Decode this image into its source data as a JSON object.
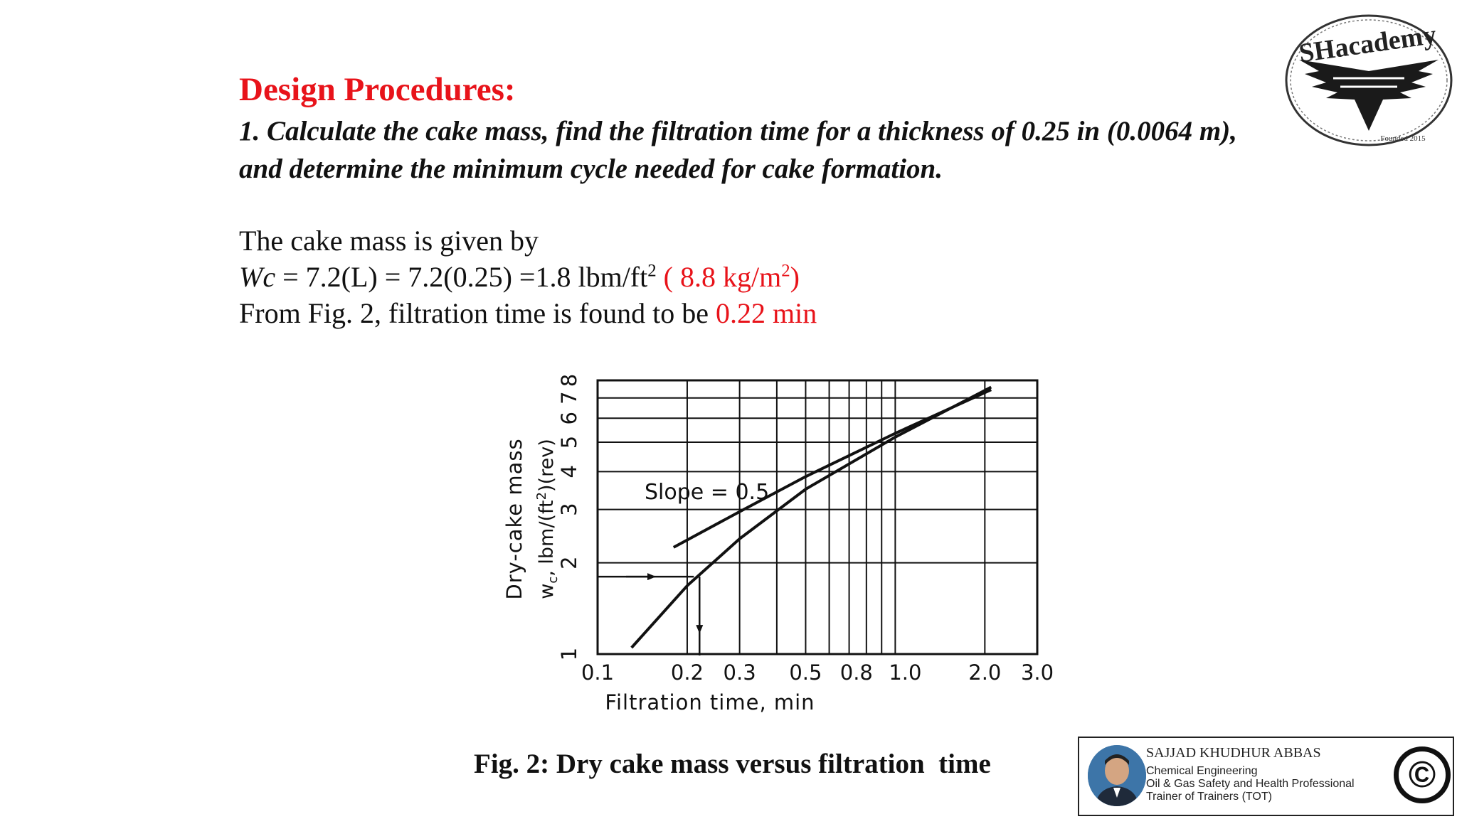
{
  "heading": "Design Procedures:",
  "step1": "1. Calculate the cake mass, find the filtration time for a thickness of 0.25 in (0.0064 m), and determine the minimum cycle needed for cake formation.",
  "line1": "The cake mass is given by",
  "line2": {
    "var": "Wc",
    "eq": " = 7.2(L) = 7.2(0.25) =1.8 lbm/ft",
    "exp1": "2",
    "red_open": " ( 8.8 kg/m",
    "exp2": "2",
    "red_close": ")"
  },
  "line3": {
    "text": "From Fig. 2, filtration time is found to be ",
    "red": "0.22 min"
  },
  "caption": "Fig. 2: Dry cake mass versus filtration  time",
  "chart_data": {
    "type": "line",
    "xscale": "log",
    "yscale": "log",
    "xlim": [
      0.1,
      3.0
    ],
    "ylim": [
      1,
      8
    ],
    "xticks": [
      {
        "v": 0.1,
        "label": "0.1"
      },
      {
        "v": 0.2,
        "label": "0.2"
      },
      {
        "v": 0.3,
        "label": "0.3"
      },
      {
        "v": 0.5,
        "label": "0.5"
      },
      {
        "v": 0.8,
        "label": "0.8"
      },
      {
        "v": 1.0,
        "label": "1.0"
      },
      {
        "v": 2.0,
        "label": "2.0"
      },
      {
        "v": 3.0,
        "label": "3.0"
      }
    ],
    "yticks": [
      "1",
      "2",
      "3",
      "4",
      "5",
      "6",
      "7",
      "8"
    ],
    "xlabel": "Filtration time, min",
    "ylabel_line1": "Dry-cake mass",
    "ylabel_line2": "w",
    "ylabel_sub": "c",
    "ylabel_rest": ", lbm/(ft",
    "ylabel_exp": "2",
    "ylabel_end": ")(rev)",
    "annotation": "Slope = 0.5",
    "series": [
      {
        "x": [
          0.13,
          0.2,
          0.3,
          0.5,
          1.0,
          2.1
        ],
        "y": [
          1.05,
          1.68,
          2.4,
          3.5,
          5.2,
          7.6
        ]
      },
      {
        "x": [
          0.18,
          0.3,
          0.5,
          1.0,
          2.1
        ],
        "y": [
          2.25,
          2.95,
          3.85,
          5.35,
          7.45
        ]
      }
    ],
    "readout": {
      "x": 0.22,
      "y": 1.8
    }
  },
  "logo": {
    "text": "SHacademy",
    "founded": "Founded 2015"
  },
  "author": {
    "name": "SAJJAD KHUDHUR ABBAS",
    "lines": [
      "Chemical Engineering",
      "Oil & Gas Safety and Health Professional",
      "Trainer of Trainers (TOT)"
    ],
    "copyright": "©"
  }
}
